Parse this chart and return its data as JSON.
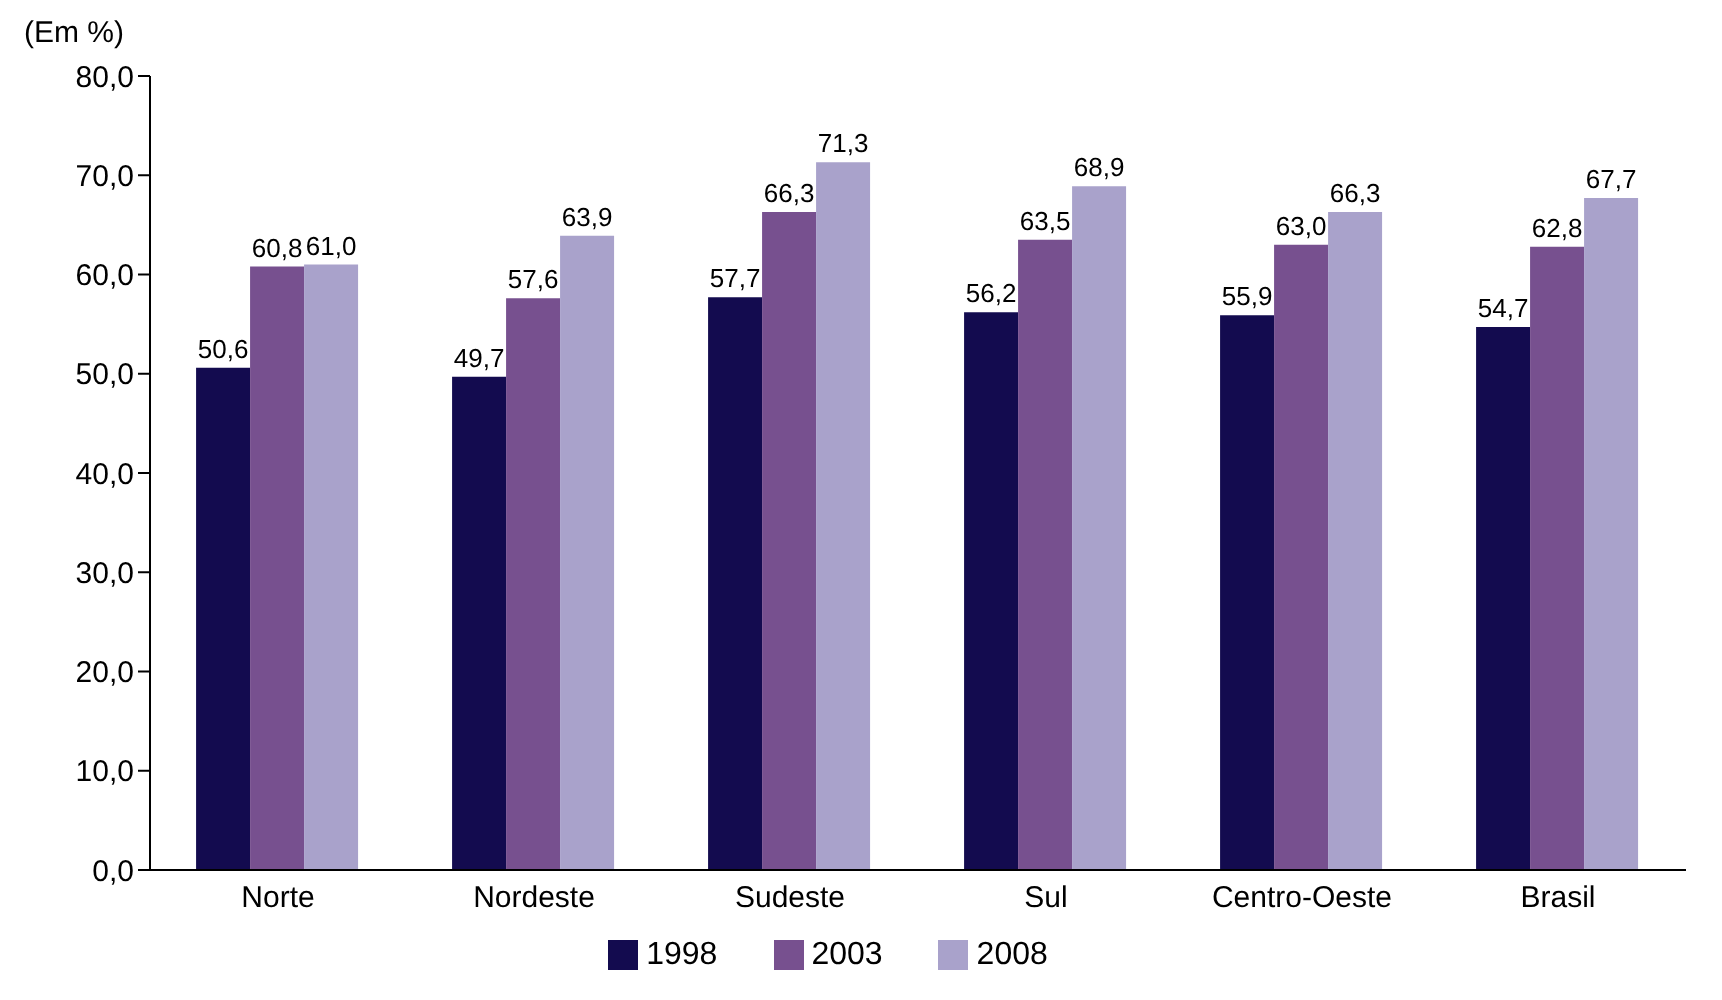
{
  "chart_data": {
    "type": "bar",
    "ylabel": "(Em %)",
    "categories": [
      "Norte",
      "Nordeste",
      "Sudeste",
      "Sul",
      "Centro-Oeste",
      "Brasil"
    ],
    "series": [
      {
        "name": "1998",
        "color": "#130b4f",
        "values": [
          50.6,
          49.7,
          57.7,
          56.2,
          55.9,
          54.7
        ],
        "value_labels": [
          "50,6",
          "49,7",
          "57,7",
          "56,2",
          "55,9",
          "54,7"
        ]
      },
      {
        "name": "2003",
        "color": "#77508f",
        "values": [
          60.8,
          57.6,
          66.3,
          63.5,
          63.0,
          62.8
        ],
        "value_labels": [
          "60,8",
          "57,6",
          "66,3",
          "63,5",
          "63,0",
          "62,8"
        ]
      },
      {
        "name": "2008",
        "color": "#a9a2cb",
        "values": [
          61.0,
          63.9,
          71.3,
          68.9,
          66.3,
          67.7
        ],
        "value_labels": [
          "61,0",
          "63,9",
          "71,3",
          "68,9",
          "66,3",
          "67,7"
        ]
      }
    ],
    "ylim": [
      0,
      80
    ],
    "yticks": [
      {
        "value": 0,
        "label": "0,0"
      },
      {
        "value": 10,
        "label": "10,0"
      },
      {
        "value": 20,
        "label": "20,0"
      },
      {
        "value": 30,
        "label": "30,0"
      },
      {
        "value": 40,
        "label": "40,0"
      },
      {
        "value": 50,
        "label": "50,0"
      },
      {
        "value": 60,
        "label": "60,0"
      },
      {
        "value": 70,
        "label": "70,0"
      },
      {
        "value": 80,
        "label": "80,0"
      }
    ],
    "grid": false,
    "legend": "bottom"
  }
}
